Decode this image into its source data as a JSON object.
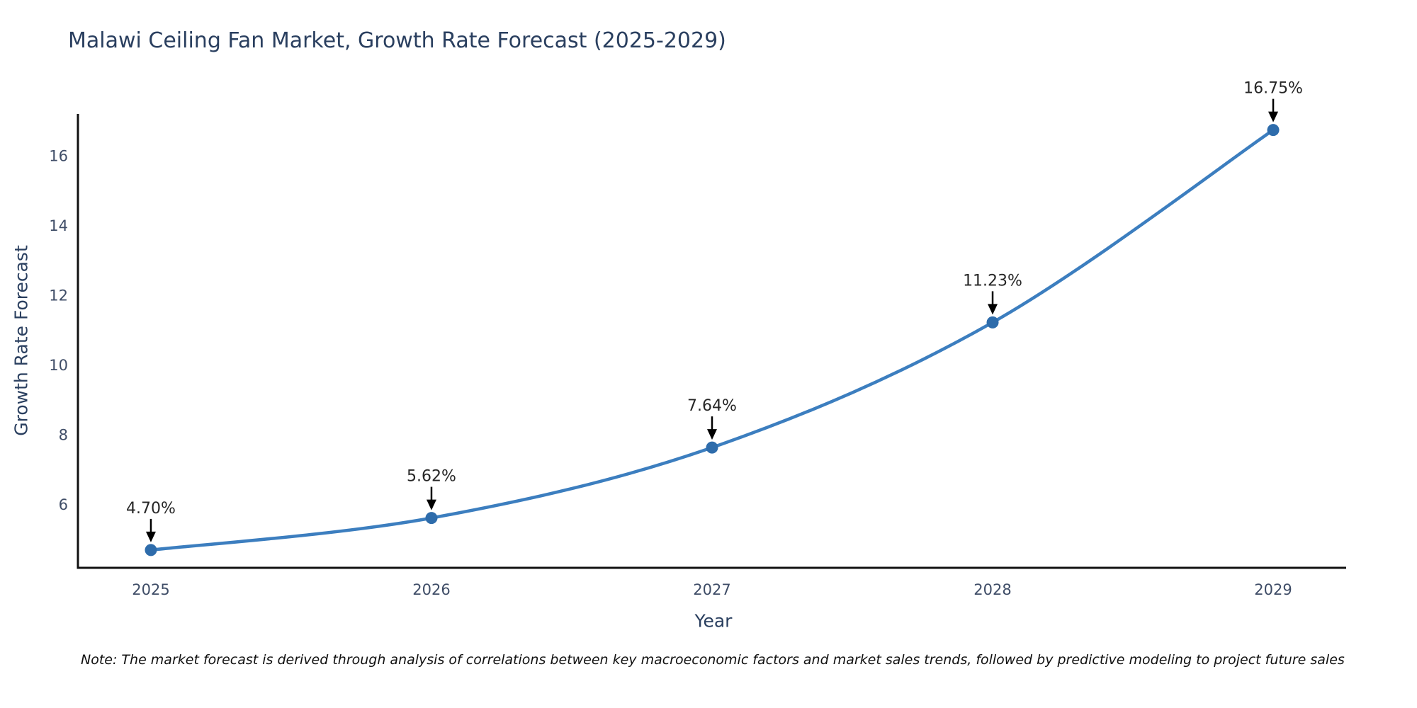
{
  "title": "Malawi Ceiling Fan Market, Growth Rate Forecast (2025-2029)",
  "note": "Note: The market forecast is derived through analysis of correlations between key macroeconomic factors and market sales trends, followed by predictive modeling to project future sales",
  "chart_data": {
    "type": "line",
    "title": "Malawi Ceiling Fan Market, Growth Rate Forecast (2025-2029)",
    "xlabel": "Year",
    "ylabel": "Growth Rate Forecast",
    "x": [
      2025,
      2026,
      2027,
      2028,
      2029
    ],
    "series": [
      {
        "name": "Growth Rate Forecast",
        "values": [
          4.7,
          5.62,
          7.64,
          11.23,
          16.75
        ]
      }
    ],
    "point_labels": [
      "4.70%",
      "5.62%",
      "7.64%",
      "11.23%",
      "16.75%"
    ],
    "xticks": [
      "2025",
      "2026",
      "2027",
      "2028",
      "2029"
    ],
    "yticks": [
      6,
      8,
      10,
      12,
      14,
      16
    ],
    "xlim": [
      2024.74,
      2029.26
    ],
    "ylim": [
      4.19,
      17.21
    ],
    "grid": false,
    "legend": "none",
    "line_shape": "spline",
    "colors": {
      "line": "#3c7ebf",
      "marker": "#2e6cab",
      "axis_line": "#111111",
      "tick_text": "#3f4d67",
      "title_text": "#2a3f5f",
      "annotation_text": "#262626",
      "arrow": "#000000",
      "background": "#ffffff"
    }
  }
}
